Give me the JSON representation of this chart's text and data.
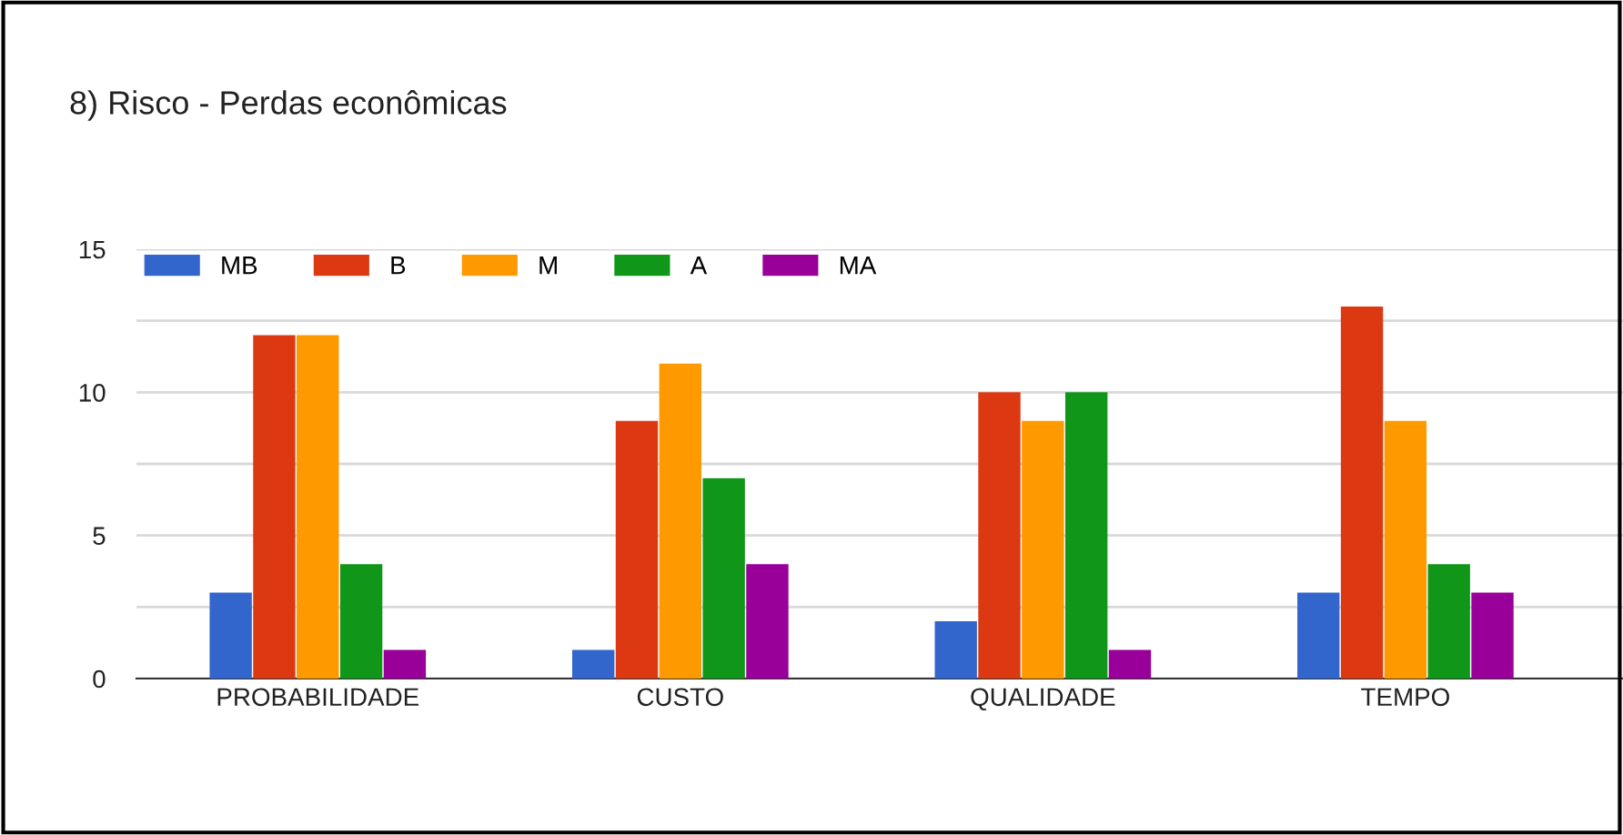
{
  "chart_data": {
    "type": "bar",
    "title": "8) Risco - Perdas econômicas",
    "categories": [
      "PROBABILIDADE",
      "CUSTO",
      "QUALIDADE",
      "TEMPO"
    ],
    "series": [
      {
        "name": "MB",
        "color": "#3366cc",
        "values": [
          3,
          1,
          2,
          3
        ]
      },
      {
        "name": "B",
        "color": "#dc3912",
        "values": [
          12,
          9,
          10,
          13
        ]
      },
      {
        "name": "M",
        "color": "#ff9900",
        "values": [
          12,
          11,
          9,
          9
        ]
      },
      {
        "name": "A",
        "color": "#109618",
        "values": [
          4,
          7,
          10,
          4
        ]
      },
      {
        "name": "MA",
        "color": "#990099",
        "values": [
          1,
          4,
          1,
          3
        ]
      }
    ],
    "ylim": [
      0,
      15
    ],
    "yticks": [
      0,
      {
        "value": 2.5,
        "label": null
      },
      5,
      {
        "value": 7.5,
        "label": null
      },
      10,
      {
        "value": 12.5,
        "label": null
      },
      15
    ],
    "grid": "y",
    "legend": "top left"
  }
}
